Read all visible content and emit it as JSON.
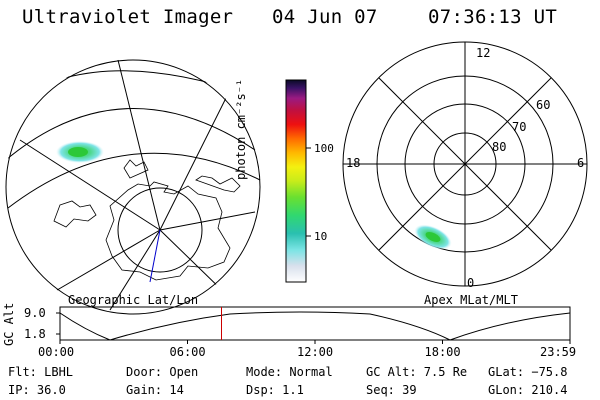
{
  "header": {
    "instrument": "Ultraviolet Imager",
    "date": "04 Jun 07",
    "time": "07:36:13 UT"
  },
  "colorbar": {
    "unit_label": "photon cm⁻²s⁻¹",
    "ticks": [
      "100",
      "10"
    ]
  },
  "polar_plot": {
    "mlt_labels": [
      "12",
      "18",
      "6",
      "0"
    ],
    "lat_labels": [
      "60",
      "70",
      "80"
    ],
    "caption": "Apex MLat/MLT"
  },
  "geo_map": {
    "caption": "Geographic Lat/Lon"
  },
  "altitude_strip": {
    "ylabel": "GC Alt",
    "ytick_top": "9.0",
    "ytick_bottom": "1.8",
    "xticks": [
      "00:00",
      "06:00",
      "12:00",
      "18:00",
      "23:59"
    ],
    "current_hour": 7.6,
    "marker_color": "#cc0000"
  },
  "status": {
    "row1": {
      "flt": "Flt: LBHL",
      "door": "Door: Open",
      "mode": "Mode: Normal",
      "gcalt": "GC Alt: 7.5 Re",
      "glat": "GLat: −75.8"
    },
    "row2": {
      "ip": "IP: 36.0",
      "gain": "Gain: 14",
      "dsp": "Dsp:    1.1",
      "seq": "Seq: 39",
      "glon": "GLon: 210.4"
    }
  },
  "colors": {
    "trace": "#000000",
    "marker": "#cc0000",
    "meridian": "#0000cc"
  }
}
